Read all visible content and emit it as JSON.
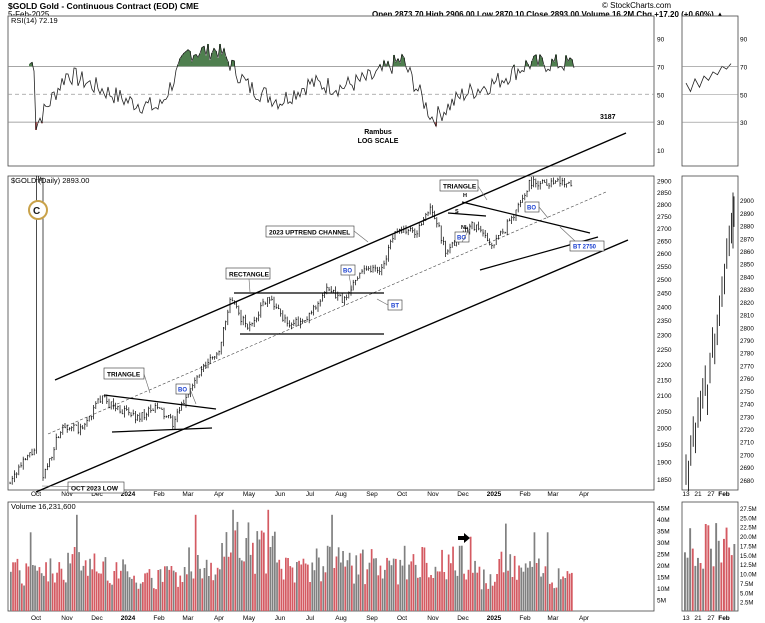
{
  "header": {
    "symbol_title": "$GOLD Gold - Continuous Contract (EOD) CME",
    "date": "5-Feb-2025",
    "ohlc": "Open 2873.70  High 2906.00  Low 2870.10  Close 2893.00  Volume 16.2M  Chg +17.20 (+0.60%) ▲",
    "source": "© StockCharts.com"
  },
  "rsi_panel": {
    "label": "RSI(14) 72.19",
    "author": "Rambus",
    "scale_note": "LOG SCALE",
    "number": "3187",
    "y_ticks": [
      "90",
      "70",
      "50",
      "30",
      "10"
    ]
  },
  "price_panel": {
    "label": "$GOLD (Daily) 2893.00",
    "y_ticks": [
      "2900",
      "2850",
      "2800",
      "2750",
      "2700",
      "2650",
      "2600",
      "2550",
      "2500",
      "2450",
      "2400",
      "2350",
      "2300",
      "2250",
      "2200",
      "2150",
      "2100",
      "2050",
      "2000",
      "1950",
      "1900",
      "1850"
    ],
    "annotations": {
      "triangle_top": "TRIANGLE",
      "triangle_left": "TRIANGLE",
      "rectangle": "RECTANGLE",
      "channel": "2023 UPTREND CHANNEL",
      "low": "OCT 2023 LOW",
      "bo1": "BO",
      "bo2": "BO",
      "bo3": "BO",
      "bo4": "BO",
      "bt1": "BT",
      "bt2": "BT 2750",
      "hs_h": "H",
      "hs_s": "S",
      "hs_nl": "NL"
    }
  },
  "volume_panel": {
    "label": "Volume 16,231,600",
    "y_ticks": [
      "45M",
      "40M",
      "35M",
      "30M",
      "25M",
      "20M",
      "15M",
      "10M",
      "5M"
    ]
  },
  "x_axis": [
    "Oct",
    "Nov",
    "Dec",
    "2024",
    "Feb",
    "Mar",
    "Apr",
    "May",
    "Jun",
    "Jul",
    "Aug",
    "Sep",
    "Oct",
    "Nov",
    "Dec",
    "2025",
    "Feb",
    "Mar",
    "Apr"
  ],
  "side_panel": {
    "price_ticks": [
      "2900",
      "2890",
      "2880",
      "2870",
      "2860",
      "2850",
      "2840",
      "2830",
      "2820",
      "2810",
      "2800",
      "2790",
      "2780",
      "2770",
      "2760",
      "2750",
      "2740",
      "2730",
      "2720",
      "2710",
      "2700",
      "2690",
      "2680"
    ],
    "volume_ticks": [
      "27.5M",
      "25.0M",
      "22.5M",
      "20.0M",
      "17.5M",
      "15.0M",
      "12.5M",
      "10.0M",
      "7.5M",
      "5.0M",
      "2.5M"
    ],
    "x_ticks": [
      "13",
      "21",
      "27",
      "Feb"
    ],
    "rsi_ticks": [
      "90",
      "70",
      "50",
      "30"
    ]
  },
  "chart_data": [
    {
      "type": "line",
      "name": "RSI(14)",
      "ylim": [
        0,
        100
      ],
      "guide_levels": [
        70,
        50,
        30
      ],
      "x": [
        "2023-10-01",
        "2023-11-01",
        "2023-12-01",
        "2024-01-01",
        "2024-02-01",
        "2024-03-01",
        "2024-04-01",
        "2024-05-01",
        "2024-06-01",
        "2024-07-01",
        "2024-08-01",
        "2024-09-01",
        "2024-10-01",
        "2024-11-01",
        "2024-12-01",
        "2025-01-01",
        "2025-02-05"
      ],
      "values": [
        28,
        65,
        55,
        45,
        40,
        80,
        82,
        55,
        45,
        58,
        55,
        62,
        75,
        32,
        50,
        58,
        72
      ]
    },
    {
      "type": "line",
      "name": "$GOLD (Daily)",
      "scale": "log",
      "ylim": [
        1820,
        2920
      ],
      "x": [
        "2023-10-06",
        "2023-10-27",
        "2023-11-15",
        "2023-12-04",
        "2023-12-20",
        "2024-01-10",
        "2024-01-30",
        "2024-02-15",
        "2024-03-01",
        "2024-03-15",
        "2024-04-01",
        "2024-04-12",
        "2024-04-30",
        "2024-05-20",
        "2024-06-07",
        "2024-06-25",
        "2024-07-17",
        "2024-08-05",
        "2024-08-20",
        "2024-09-10",
        "2024-09-26",
        "2024-10-15",
        "2024-10-30",
        "2024-11-14",
        "2024-11-25",
        "2024-12-10",
        "2024-12-30",
        "2025-01-15",
        "2025-01-30",
        "2025-02-05"
      ],
      "values": [
        1840,
        2010,
        1990,
        2090,
        2060,
        2030,
        2060,
        2010,
        2110,
        2180,
        2250,
        2420,
        2320,
        2440,
        2340,
        2340,
        2460,
        2420,
        2540,
        2540,
        2700,
        2680,
        2790,
        2590,
        2660,
        2720,
        2630,
        2720,
        2830,
        2893
      ]
    },
    {
      "type": "bar",
      "name": "Volume",
      "ylim": [
        0,
        45
      ],
      "unit": "M",
      "x": [
        "2023-10",
        "2023-11",
        "2023-12",
        "2024-01",
        "2024-02",
        "2024-03",
        "2024-04",
        "2024-05",
        "2024-06",
        "2024-07",
        "2024-08",
        "2024-09",
        "2024-10",
        "2024-11",
        "2024-12",
        "2025-01"
      ],
      "values": [
        18,
        22,
        20,
        15,
        16,
        22,
        32,
        28,
        20,
        22,
        21,
        18,
        22,
        24,
        17,
        20
      ]
    }
  ],
  "colors": {
    "up_bar": "#808080",
    "down_bar": "#d45a62",
    "rsi_fill": "#4f7f4f",
    "rsi_low_fill": "#c06060",
    "annotation_blue": "#1a3fd0",
    "grid": "#aaaaaa"
  }
}
